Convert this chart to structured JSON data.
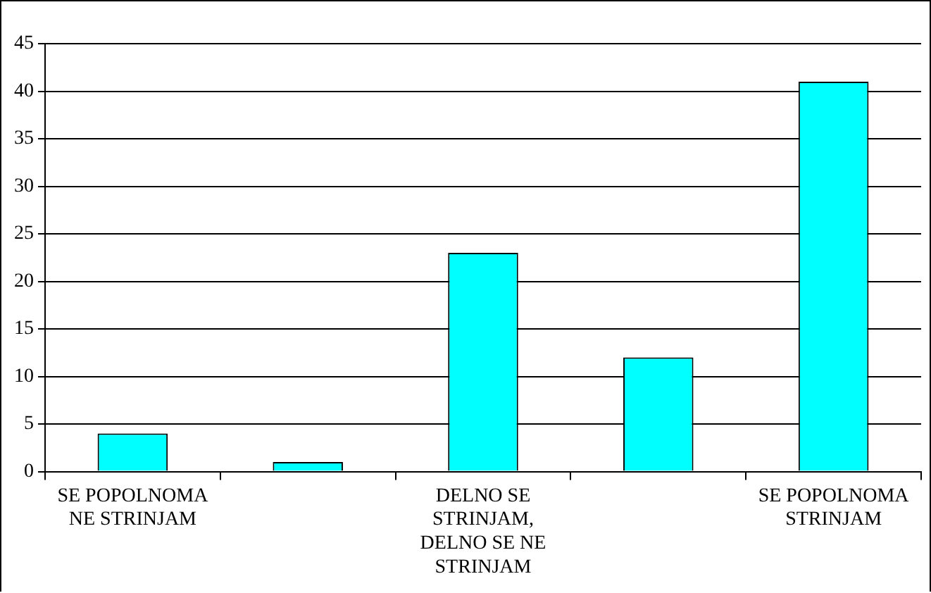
{
  "chart_data": {
    "type": "bar",
    "categories": [
      "SE POPOLNOMA NE STRINJAM",
      null,
      "DELNO SE STRINJAM, DELNO SE NE STRINJAM",
      null,
      "SE POPOLNOMA STRINJAM"
    ],
    "values": [
      4,
      1,
      23,
      12,
      41
    ],
    "color": "#00ffff",
    "ylim": [
      0,
      45
    ],
    "yticks": [
      0,
      5,
      10,
      15,
      20,
      25,
      30,
      35,
      40,
      45
    ],
    "grid": "y",
    "legend": false
  }
}
